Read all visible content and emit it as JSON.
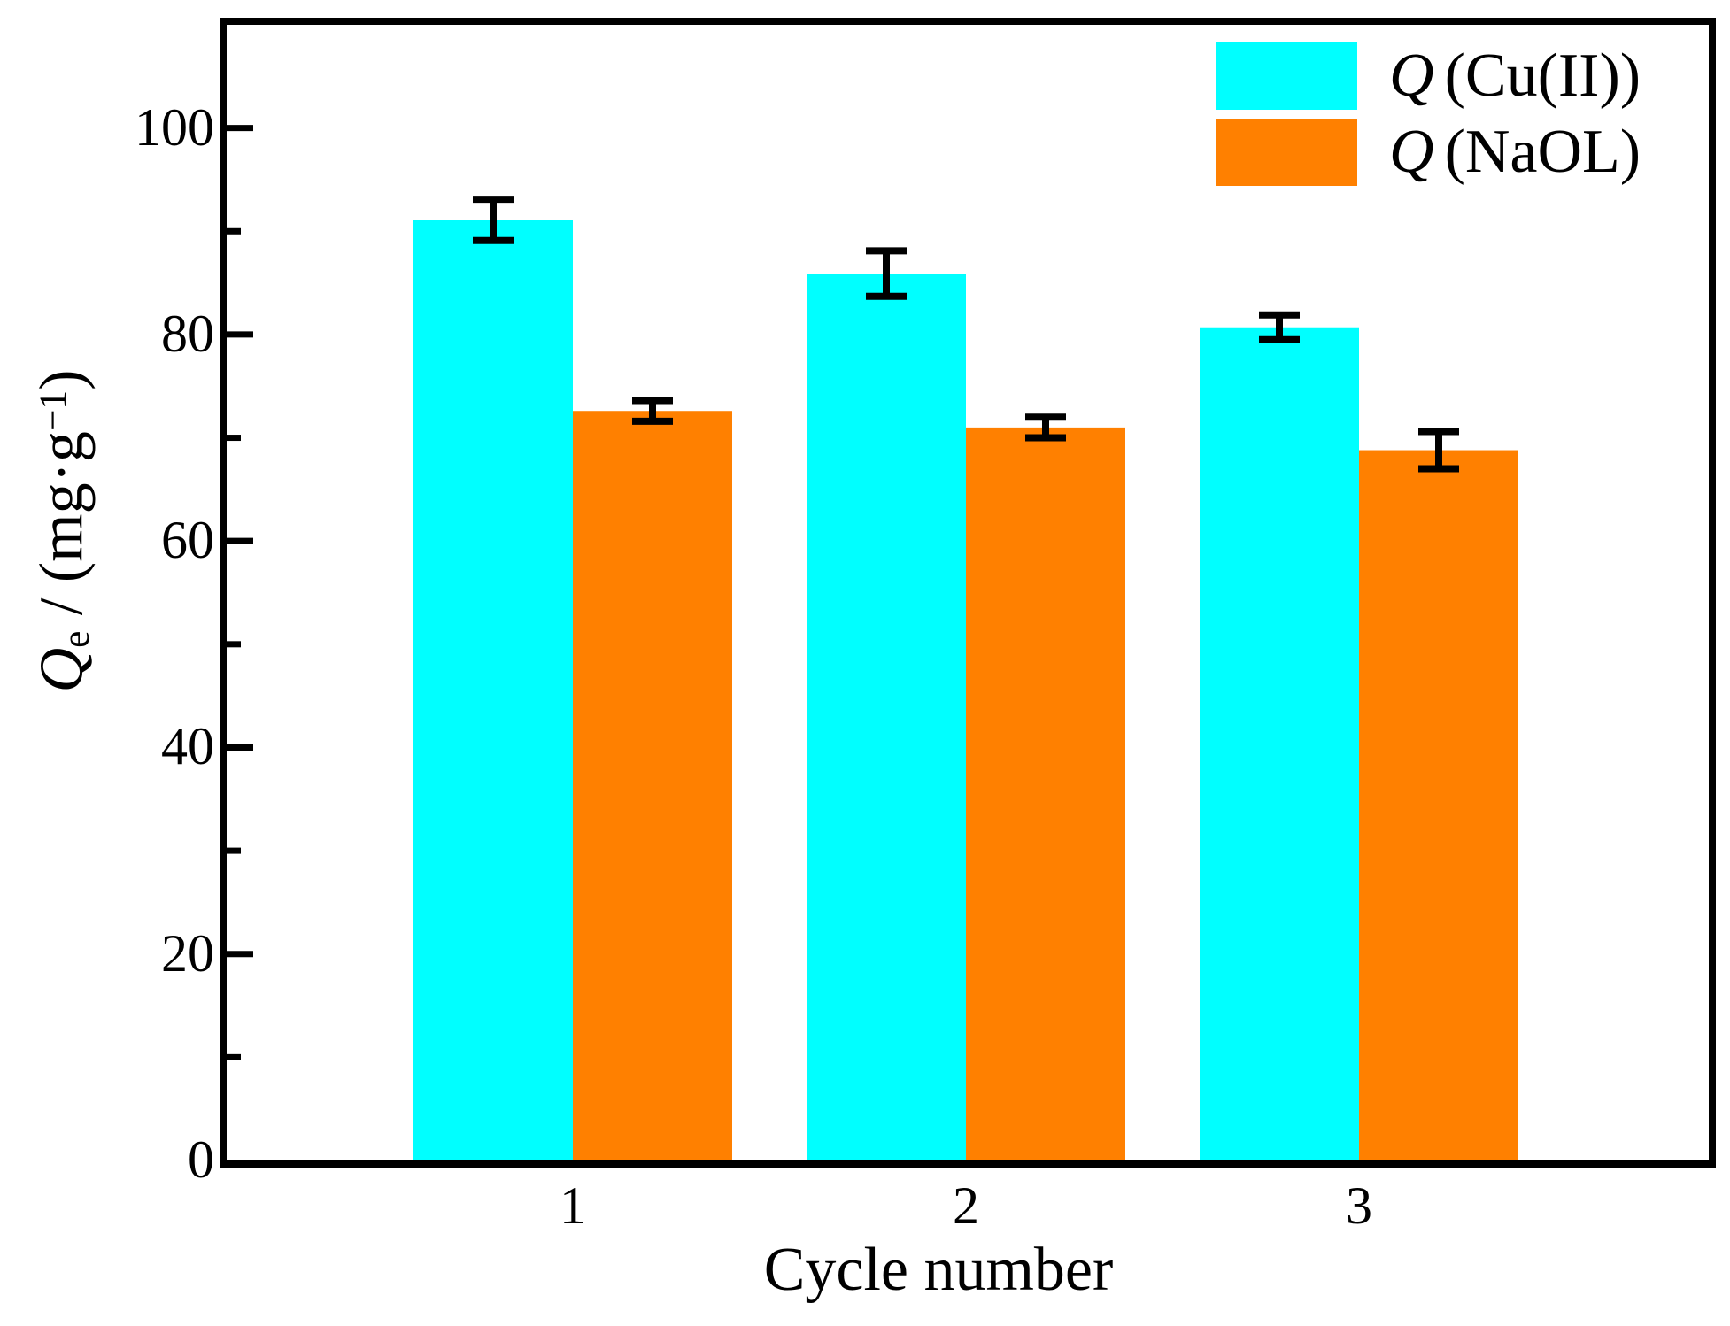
{
  "figure": {
    "background": "#FFFFFF",
    "axis_color": "#000000"
  },
  "y_axis": {
    "label_parts": {
      "symbol": "Q",
      "subscript": "e",
      "mid": " / (mg·g",
      "superscript": "−1",
      "end": ")"
    },
    "tick_labels": [
      "0",
      "20",
      "40",
      "60",
      "80",
      "100"
    ]
  },
  "x_axis": {
    "label": "Cycle number",
    "tick_labels": [
      "1",
      "2",
      "3"
    ]
  },
  "legend": [
    {
      "symbol": "Q",
      "text": "(Cu(II))",
      "color": "#00FFFF"
    },
    {
      "symbol": "Q",
      "text": "(NaOL)",
      "color": "#FF8000"
    }
  ],
  "chart_data": {
    "type": "bar",
    "title": "",
    "xlabel": "Cycle number",
    "ylabel": "Qe / (mg·g⁻¹)",
    "categories": [
      "1",
      "2",
      "3"
    ],
    "series": [
      {
        "name": "Q (Cu(II))",
        "color": "#00FFFF",
        "values": [
          91.1,
          85.9,
          80.7
        ],
        "errors": [
          2.0,
          2.2,
          1.2
        ]
      },
      {
        "name": "Q (NaOL)",
        "color": "#FF8000",
        "values": [
          72.6,
          71.0,
          68.8
        ],
        "errors": [
          1.0,
          1.0,
          1.8
        ]
      }
    ],
    "ylim": [
      0,
      110
    ],
    "y_major_ticks": [
      0,
      20,
      40,
      60,
      80,
      100
    ],
    "y_minor_ticks": [
      10,
      30,
      50,
      70,
      90
    ],
    "legend_position": "top-right",
    "grid": false,
    "error_bar_color": "#000000"
  }
}
